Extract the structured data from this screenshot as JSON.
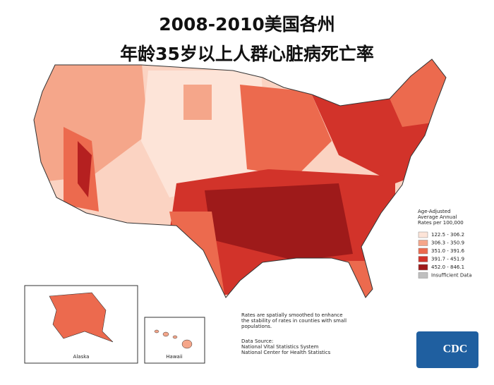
{
  "header": {
    "title_lines": [
      "2008-2010美国各州",
      "年龄35岁以上人群心脏病死亡率"
    ]
  },
  "legend": {
    "title_lines": [
      "Age-Adjusted",
      "Average Annual",
      "Rates per 100,000"
    ],
    "items": [
      {
        "label": "122.5 - 306.2",
        "color": "#fde4d8"
      },
      {
        "label": "306.3 - 350.9",
        "color": "#f5a68a"
      },
      {
        "label": "351.0 - 391.6",
        "color": "#ec6a4e"
      },
      {
        "label": "391.7 - 451.9",
        "color": "#d2332a"
      },
      {
        "label": "452.0 - 846.1",
        "color": "#9e1a1a"
      },
      {
        "label": "Insufficient Data",
        "color": "#bfbfbf"
      }
    ]
  },
  "note": {
    "lines": [
      "Rates are spatially smoothed to enhance",
      "the stability of rates in counties with small",
      "populations."
    ]
  },
  "source": {
    "lines": [
      "Data Source:",
      "National Vital Statistics System",
      "National Center for Health Statistics"
    ]
  },
  "insets": {
    "alaska": "Alaska",
    "hawaii": "Hawaii"
  },
  "logo": "CDC"
}
